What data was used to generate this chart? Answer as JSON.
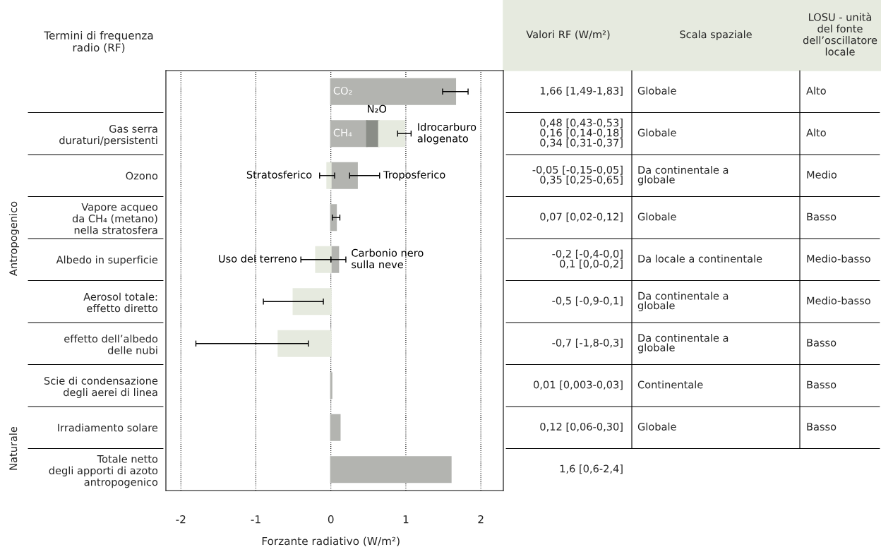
{
  "chart_data": {
    "type": "bar",
    "orientation": "horizontal",
    "stacked": true,
    "categories": [
      null,
      "Gas serra\nduraturi/persistenti",
      "Ozono",
      "Vapore acqueo\nda CH₄ (metano)\nnella stratosfera",
      "Albedo in superficie",
      "Aerosol totale:\neffetto diretto",
      "effetto dell’albedo\ndelle nubi",
      "Scie di condensazione\ndegli aerei di linea",
      "Irradiamento solare",
      "Totale netto\ndegli apporti di azoto\nantropogenico"
    ],
    "series": [
      {
        "color": "#b3b4b0",
        "values": [
          1.66,
          0.48,
          0.35,
          0.07,
          0.1,
          null,
          null,
          0.01,
          0.12,
          1.6
        ],
        "errors": [
          [
            1.49,
            1.83
          ],
          null,
          [
            0.25,
            0.65
          ],
          [
            0.02,
            0.12
          ],
          [
            0.0,
            0.2
          ],
          null,
          null,
          null,
          null,
          null
        ]
      },
      {
        "color": "#8a8d87",
        "values": [
          null,
          0.16,
          null,
          null,
          null,
          null,
          null,
          null,
          null,
          null
        ]
      },
      {
        "color": "#e6eadf",
        "values": [
          null,
          0.34,
          -0.05,
          null,
          -0.2,
          -0.5,
          -0.7,
          null,
          null,
          null
        ],
        "errors": [
          null,
          [
            0.89,
            1.07
          ],
          [
            -0.15,
            0.05
          ],
          null,
          [
            -0.4,
            0.0
          ],
          [
            -0.9,
            -0.1
          ],
          [
            -1.8,
            -0.3
          ],
          null,
          null,
          null
        ]
      }
    ],
    "xlim": [
      -2.2,
      2.3
    ],
    "xticks": [
      -2,
      -1,
      0,
      1,
      2
    ],
    "grid": "x",
    "xlabel": "Forzante radiativo (W/m²)",
    "annotations": [
      "Termini di frequenza\nradio (RF)",
      "Valori RF (W/m²)",
      "Scala spaziale",
      "LOSU - unità\ndel fonte\ndell’oscillatore\nlocale",
      "Antropogenico",
      "Naturale",
      "1,66 [1,49-1,83]",
      "0,48 [0,43-0,53]\n0,16 [0,14-0,18]\n0,34 [0,31-0,37]",
      "-0,05 [-0,15-0,05]\n0,35 [0,25-0,65]",
      "0,07 [0,02-0,12]",
      "-0,2 [-0,4-0,0]\n0,1 [0,0-0,2]",
      "-0,5 [-0,9-0,1]",
      "-0,7 [-1,8-0,3]",
      "0,01 [0,003-0,03]",
      "0,12 [0,06-0,30]",
      "1,6 [0,6-2,4]",
      "Globale",
      "Globale",
      "Da continentale a\nglobale",
      "Globale",
      "Da locale a continentale",
      "Da continentale a\nglobale",
      "Da continentale a\nglobale",
      "Continentale",
      "Globale",
      "Alto",
      "Alto",
      "Medio",
      "Basso",
      "Medio-basso",
      "Medio-basso",
      "Basso",
      "Basso",
      "Basso",
      {
        "text": "CO₂",
        "x": 0.03
      },
      {
        "text": "CH₄",
        "x": 0.03,
        "y": "Gas serra\nduraturi/persistenti"
      },
      "N₂O",
      "Idrocarburo\nalogenato",
      "Stratosferico",
      "Troposferico",
      "Uso del terreno",
      "Carbonio nero\nsulla neve"
    ]
  }
}
